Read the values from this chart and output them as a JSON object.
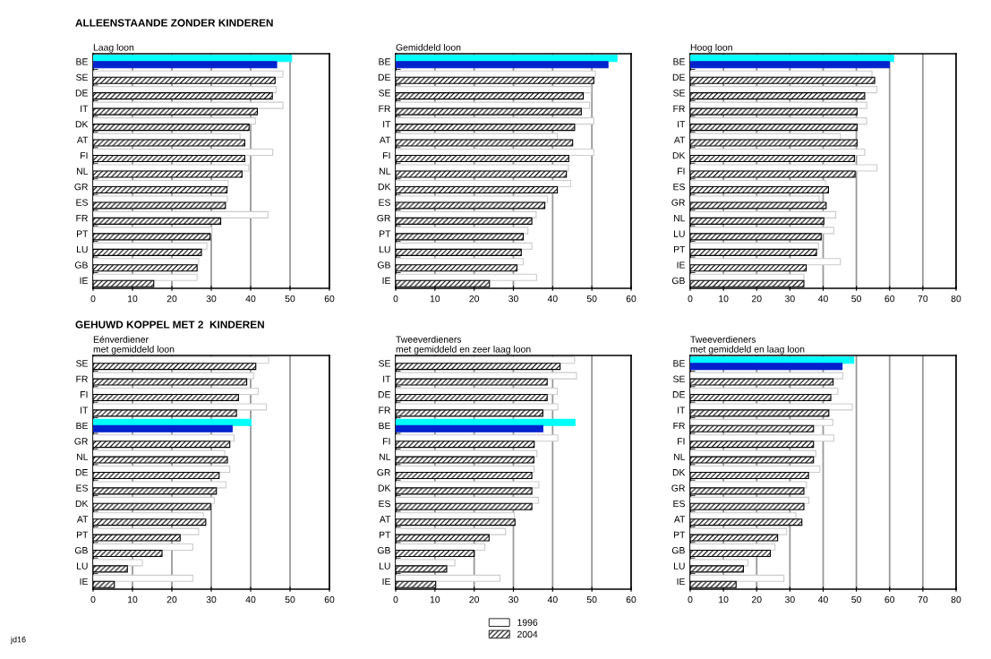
{
  "chart_data": [
    {
      "type": "bar",
      "orientation": "horizontal",
      "title": "ALLEENSTAANDE ZONDER KINDEREN",
      "subtitle": "Laag loon",
      "categories": [
        "BE",
        "SE",
        "DE",
        "IT",
        "DK",
        "AT",
        "FI",
        "NL",
        "GR",
        "ES",
        "FR",
        "PT",
        "LU",
        "GB",
        "IE"
      ],
      "series": [
        {
          "colors": [
            "#00ffff",
            "#ffffff",
            "#ffffff",
            "#ffffff",
            "#ffffff",
            "#ffffff",
            "#ffffff",
            "#ffffff",
            "#ffffff",
            "#ffffff",
            "#ffffff",
            "#ffffff",
            "#ffffff",
            "#ffffff",
            "#ffffff"
          ],
          "values": [
            50.4,
            48.2,
            46.5,
            48.2,
            41.2,
            37.3,
            45.6,
            39.5,
            34.3,
            34.1,
            44.4,
            30.2,
            28.9,
            26.8,
            26.4
          ]
        },
        {
          "colors": [
            "#0022cc",
            "#000000",
            "#000000",
            "#000000",
            "#000000",
            "#000000",
            "#000000",
            "#000000",
            "#000000",
            "#000000",
            "#000000",
            "#000000",
            "#000000",
            "#000000",
            "#000000"
          ],
          "values": [
            46.6,
            46.2,
            45.5,
            41.7,
            39.6,
            38.5,
            38.5,
            37.8,
            34.0,
            33.6,
            32.4,
            29.7,
            27.5,
            26.4,
            15.4
          ]
        }
      ],
      "xlim": [
        0,
        60
      ],
      "xticks": [
        0,
        10,
        20,
        30,
        40,
        50,
        60
      ],
      "grid": "x",
      "legend": false
    },
    {
      "type": "bar",
      "orientation": "horizontal",
      "subtitle": "Gemiddeld loon",
      "categories": [
        "BE",
        "DE",
        "SE",
        "FR",
        "IT",
        "AT",
        "FI",
        "NL",
        "DK",
        "ES",
        "GR",
        "PT",
        "LU",
        "GB",
        "IE"
      ],
      "series": [
        {
          "colors": [
            "#00ffff",
            "#ffffff",
            "#ffffff",
            "#ffffff",
            "#ffffff",
            "#ffffff",
            "#ffffff",
            "#ffffff",
            "#ffffff",
            "#ffffff",
            "#ffffff",
            "#ffffff",
            "#ffffff",
            "#ffffff",
            "#ffffff"
          ],
          "values": [
            56.4,
            50.9,
            49.8,
            49.4,
            50.5,
            41.2,
            50.5,
            44.0,
            44.6,
            38.7,
            35.8,
            33.7,
            34.7,
            32.5,
            35.9
          ]
        },
        {
          "colors": [
            "#0022cc",
            "#000000",
            "#000000",
            "#000000",
            "#000000",
            "#000000",
            "#000000",
            "#000000",
            "#000000",
            "#000000",
            "#000000",
            "#000000",
            "#000000",
            "#000000",
            "#000000"
          ],
          "values": [
            54.1,
            50.5,
            47.8,
            47.3,
            45.6,
            45.1,
            44.1,
            43.5,
            41.2,
            38.0,
            34.7,
            32.5,
            32.0,
            30.9,
            23.9
          ]
        }
      ],
      "xlim": [
        0,
        60
      ],
      "xticks": [
        0,
        10,
        20,
        30,
        40,
        50,
        60
      ],
      "grid": "x",
      "legend": false
    },
    {
      "type": "bar",
      "orientation": "horizontal",
      "subtitle": "Hoog loon",
      "categories": [
        "BE",
        "DE",
        "SE",
        "FR",
        "IT",
        "AT",
        "DK",
        "FI",
        "ES",
        "GR",
        "NL",
        "LU",
        "PT",
        "IE",
        "GB"
      ],
      "series": [
        {
          "colors": [
            "#00ffff",
            "#ffffff",
            "#ffffff",
            "#ffffff",
            "#ffffff",
            "#ffffff",
            "#ffffff",
            "#ffffff",
            "#ffffff",
            "#ffffff",
            "#ffffff",
            "#ffffff",
            "#ffffff",
            "#ffffff",
            "#ffffff"
          ],
          "values": [
            61.2,
            54.7,
            56.2,
            53.1,
            53.1,
            45.2,
            52.5,
            56.2,
            40.7,
            38.8,
            43.8,
            43.2,
            38.6,
            45.2,
            34.2
          ]
        },
        {
          "colors": [
            "#0022cc",
            "#000000",
            "#000000",
            "#000000",
            "#000000",
            "#000000",
            "#000000",
            "#000000",
            "#000000",
            "#000000",
            "#000000",
            "#000000",
            "#000000",
            "#000000",
            "#000000"
          ],
          "values": [
            59.9,
            55.5,
            52.5,
            50.2,
            50.2,
            50.2,
            49.4,
            49.6,
            41.6,
            40.9,
            40.2,
            39.4,
            38.0,
            34.9,
            34.2
          ]
        }
      ],
      "xlim": [
        0,
        80
      ],
      "xticks": [
        0,
        10,
        20,
        30,
        40,
        50,
        60,
        70,
        80
      ],
      "grid": "x",
      "legend": false
    },
    {
      "type": "bar",
      "orientation": "horizontal",
      "title": "GEHUWD KOPPEL MET 2  KINDEREN",
      "subtitle": "Eénverdiener\nmet gemiddeld loon",
      "categories": [
        "SE",
        "FR",
        "FI",
        "IT",
        "BE",
        "GR",
        "NL",
        "DE",
        "ES",
        "DK",
        "AT",
        "PT",
        "GB",
        "LU",
        "IE"
      ],
      "series": [
        {
          "colors": [
            "#ffffff",
            "#ffffff",
            "#ffffff",
            "#ffffff",
            "#00ffff",
            "#ffffff",
            "#ffffff",
            "#ffffff",
            "#ffffff",
            "#ffffff",
            "#ffffff",
            "#ffffff",
            "#ffffff",
            "#ffffff",
            "#ffffff"
          ],
          "values": [
            44.6,
            40.7,
            41.9,
            44.0,
            40.1,
            35.8,
            33.4,
            34.7,
            33.7,
            30.8,
            28.0,
            26.8,
            25.3,
            12.5,
            25.3
          ]
        },
        {
          "colors": [
            "#000000",
            "#000000",
            "#000000",
            "#000000",
            "#0022cc",
            "#000000",
            "#000000",
            "#000000",
            "#000000",
            "#000000",
            "#000000",
            "#000000",
            "#000000",
            "#000000",
            "#000000"
          ],
          "values": [
            41.3,
            39.0,
            36.9,
            36.4,
            35.3,
            34.7,
            34.1,
            32.0,
            31.3,
            29.8,
            28.6,
            22.1,
            17.5,
            8.7,
            5.4
          ]
        }
      ],
      "xlim": [
        0,
        60
      ],
      "xticks": [
        0,
        10,
        20,
        30,
        40,
        50,
        60
      ],
      "grid": "x",
      "legend": false,
      "annotations": [
        "jd16"
      ]
    },
    {
      "type": "bar",
      "orientation": "horizontal",
      "subtitle": "Tweeverdieners\nmet gemiddeld en zeer laag loon",
      "categories": [
        "SE",
        "IT",
        "DE",
        "FR",
        "BE",
        "FI",
        "NL",
        "GR",
        "DK",
        "ES",
        "AT",
        "PT",
        "GB",
        "LU",
        "IE"
      ],
      "series": [
        {
          "name": "1996",
          "color": "#ffffff",
          "colors": [
            "#ffffff",
            "#ffffff",
            "#ffffff",
            "#ffffff",
            "#00ffff",
            "#ffffff",
            "#ffffff",
            "#ffffff",
            "#ffffff",
            "#ffffff",
            "#ffffff",
            "#ffffff",
            "#ffffff",
            "#ffffff",
            "#ffffff"
          ],
          "values": [
            45.6,
            46.1,
            41.2,
            41.3,
            45.7,
            41.3,
            36.0,
            35.3,
            36.5,
            36.4,
            30.2,
            28.0,
            22.7,
            15.1,
            26.6
          ]
        },
        {
          "name": "2004",
          "color": "#000000",
          "colors": [
            "#000000",
            "#000000",
            "#000000",
            "#000000",
            "#0022cc",
            "#000000",
            "#000000",
            "#000000",
            "#000000",
            "#000000",
            "#000000",
            "#000000",
            "#000000",
            "#000000",
            "#000000"
          ],
          "values": [
            41.9,
            38.6,
            38.6,
            37.5,
            37.5,
            35.3,
            35.2,
            34.7,
            34.7,
            34.7,
            30.4,
            23.8,
            20.0,
            13.0,
            10.2
          ]
        }
      ],
      "xlim": [
        0,
        60
      ],
      "xticks": [
        0,
        10,
        20,
        30,
        40,
        50,
        60
      ],
      "grid": "x",
      "legend": "bottom"
    },
    {
      "type": "bar",
      "orientation": "horizontal",
      "subtitle": "Tweeverdieners\nmet gemiddeld en laag loon",
      "categories": [
        "BE",
        "SE",
        "DE",
        "IT",
        "FR",
        "FI",
        "NL",
        "DK",
        "GR",
        "ES",
        "AT",
        "PT",
        "GB",
        "LU",
        "IE"
      ],
      "series": [
        {
          "colors": [
            "#00ffff",
            "#ffffff",
            "#ffffff",
            "#ffffff",
            "#ffffff",
            "#ffffff",
            "#ffffff",
            "#ffffff",
            "#ffffff",
            "#ffffff",
            "#ffffff",
            "#ffffff",
            "#ffffff",
            "#ffffff",
            "#ffffff"
          ],
          "values": [
            49.2,
            45.9,
            44.4,
            48.8,
            42.9,
            43.2,
            37.8,
            39.0,
            35.0,
            35.7,
            31.8,
            29.0,
            25.5,
            17.4,
            28.2
          ]
        },
        {
          "colors": [
            "#0022cc",
            "#000000",
            "#000000",
            "#000000",
            "#000000",
            "#000000",
            "#000000",
            "#000000",
            "#000000",
            "#000000",
            "#000000",
            "#000000",
            "#000000",
            "#000000",
            "#000000"
          ],
          "values": [
            45.7,
            43.0,
            42.3,
            41.7,
            37.1,
            37.1,
            37.1,
            35.6,
            34.2,
            34.2,
            33.6,
            26.3,
            24.1,
            16.0,
            13.8
          ]
        }
      ],
      "xlim": [
        0,
        80
      ],
      "xticks": [
        0,
        10,
        20,
        30,
        40,
        50,
        60,
        70,
        80
      ],
      "grid": "x",
      "legend": false
    }
  ]
}
